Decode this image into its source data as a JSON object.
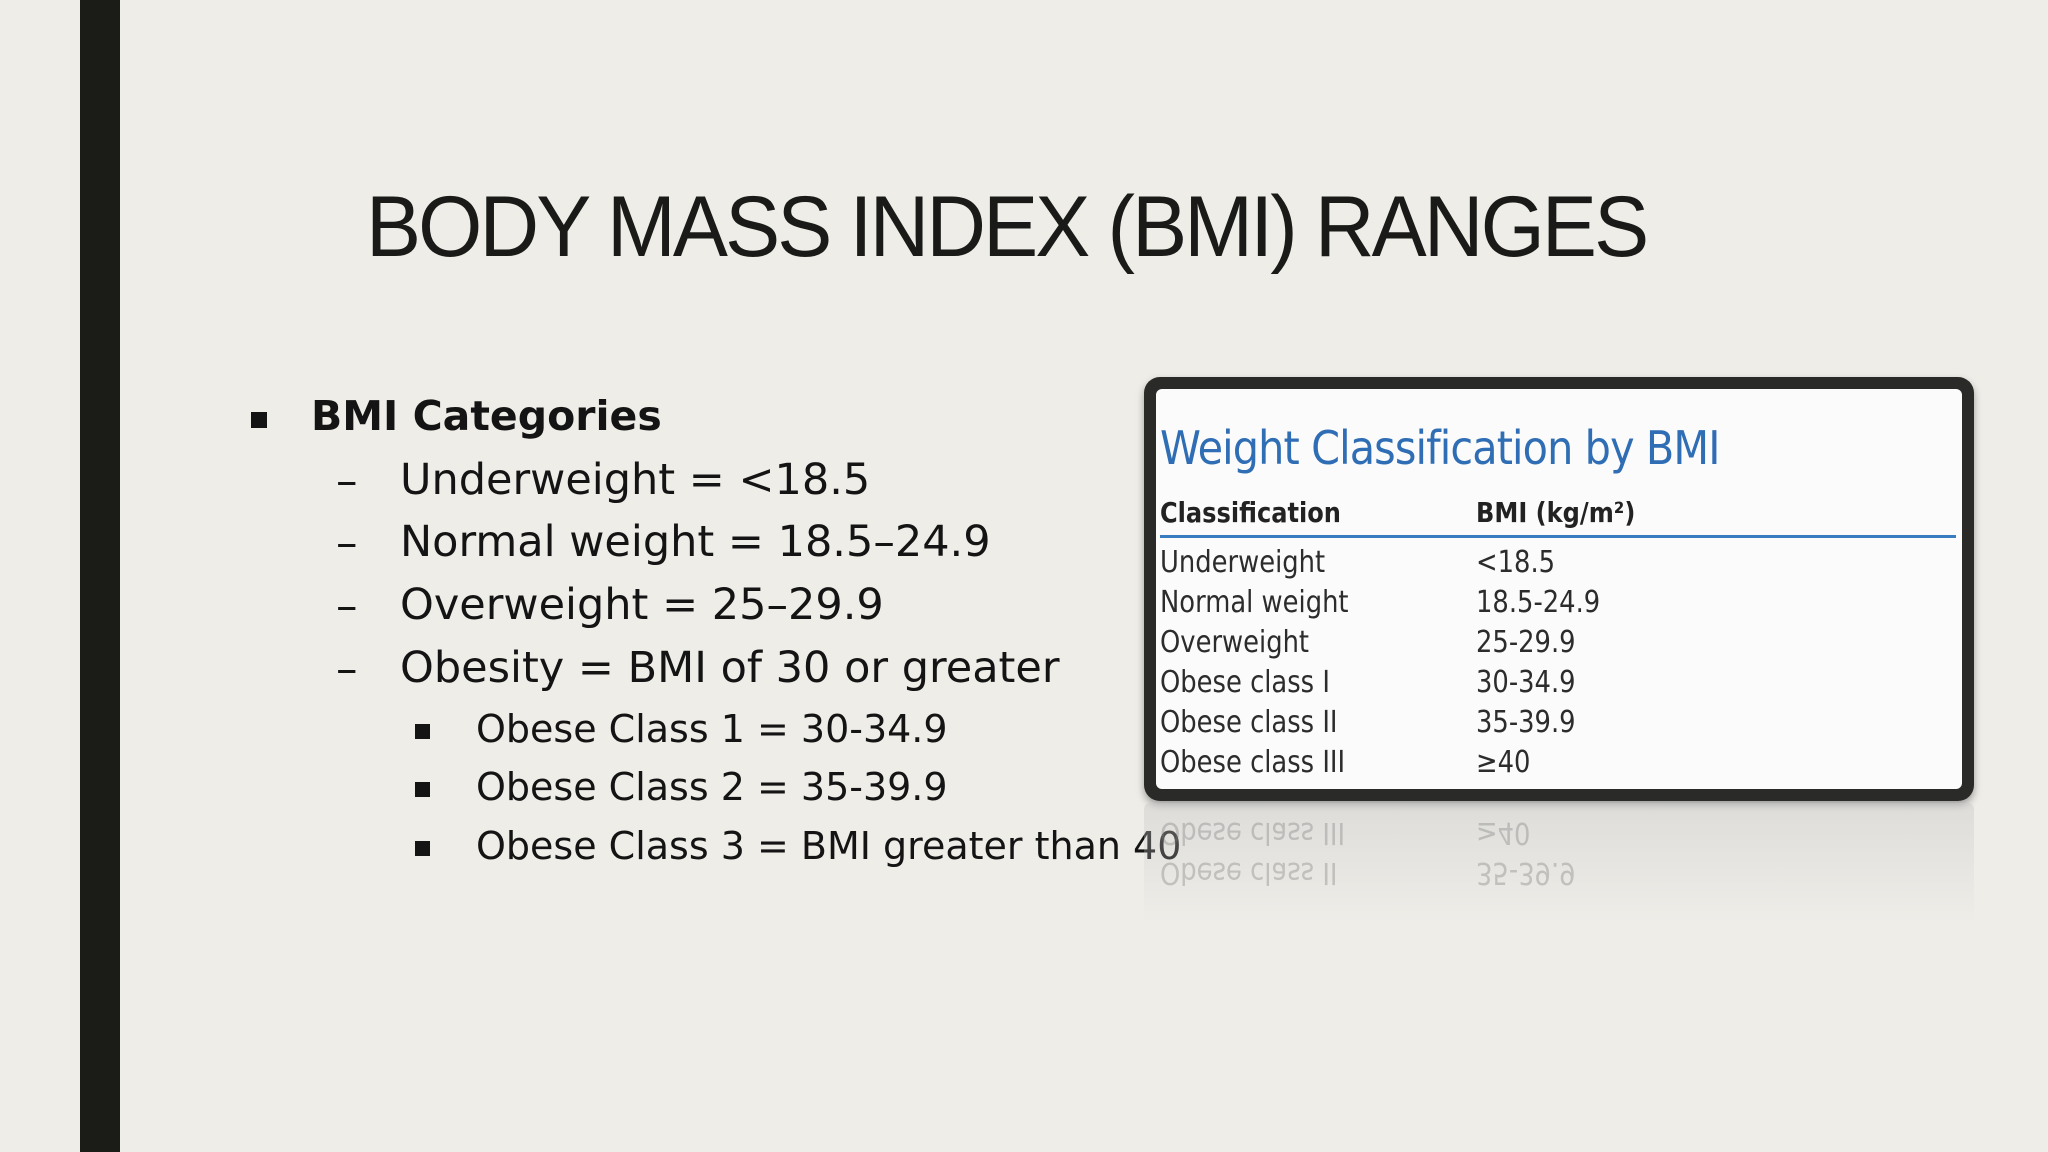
{
  "slide": {
    "title": "BODY MASS INDEX (BMI) RANGES"
  },
  "bullets": {
    "heading": "BMI Categories",
    "items": [
      "Underweight = <18.5",
      "Normal weight = 18.5–24.9",
      "Overweight = 25–29.9",
      "Obesity = BMI of 30 or greater"
    ],
    "dash": "–",
    "subitems": [
      "Obese Class 1 = 30-34.9",
      "Obese Class 2 = 35-39.9",
      "Obese Class 3 = BMI greater than 40"
    ]
  },
  "table_image": {
    "title": "Weight Classification by BMI",
    "col_classification": "Classification",
    "col_bmi": "BMI (kg/m²)",
    "title_color": "#2f6db4",
    "rows": [
      {
        "classification": "Underweight",
        "bmi": "<18.5"
      },
      {
        "classification": "Normal weight",
        "bmi": "18.5-24.9"
      },
      {
        "classification": "Overweight",
        "bmi": "25-29.9"
      },
      {
        "classification": "Obese class I",
        "bmi": "30-34.9"
      },
      {
        "classification": "Obese class II",
        "bmi": "35-39.9"
      },
      {
        "classification": "Obese class III",
        "bmi": "≥40"
      }
    ]
  }
}
